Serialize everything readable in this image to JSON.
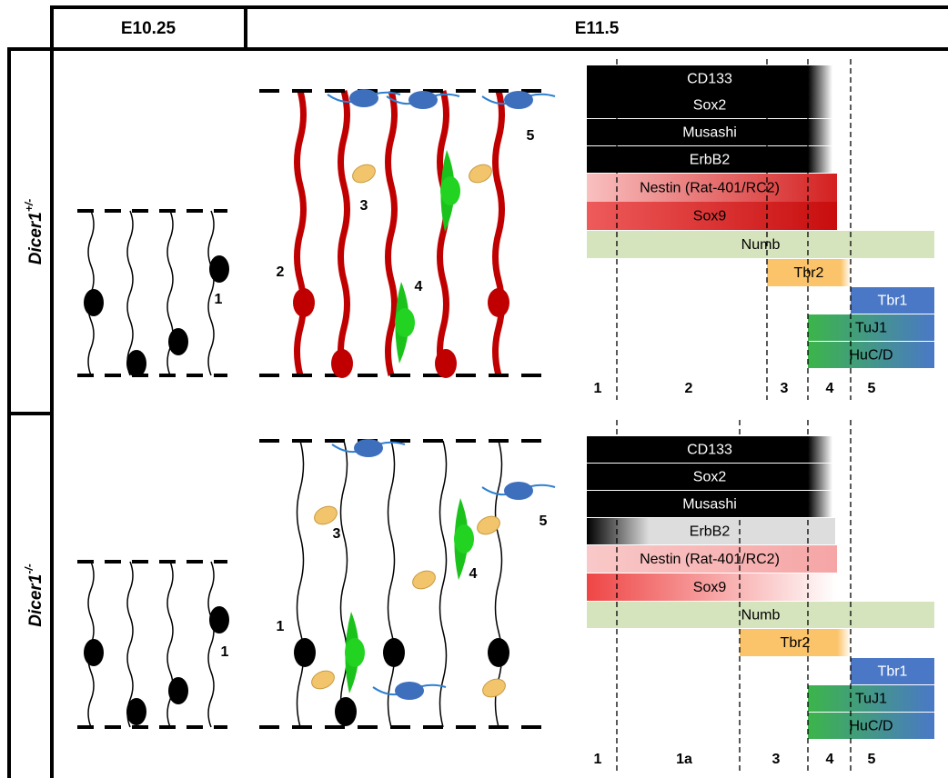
{
  "columns": [
    "E10.25",
    "E11.5"
  ],
  "rows": [
    {
      "label": "Dicer1",
      "label_superscript": "+/-",
      "cell_labels": [
        "1",
        "2",
        "3",
        "4",
        "5"
      ],
      "markers": [
        "CD133",
        "Sox2",
        "Musashi",
        "ErbB2",
        "Nestin (Rat-401/RC2)",
        "Sox9",
        "Numb",
        "Tbr2",
        "Tbr1",
        "TuJ1",
        "HuC/D"
      ],
      "zones": [
        "1",
        "2",
        "3",
        "4",
        "5"
      ]
    },
    {
      "label": "Dicer1",
      "label_superscript": "-/-",
      "cell_labels": [
        "1",
        "1",
        "3",
        "4",
        "5"
      ],
      "markers": [
        "CD133",
        "Sox2",
        "Musashi",
        "ErbB2",
        "Nestin (Rat-401/RC2)",
        "Sox9",
        "Numb",
        "Tbr2",
        "Tbr1",
        "TuJ1",
        "HuC/D"
      ],
      "zones": [
        "1",
        "1a",
        "3",
        "4",
        "5"
      ]
    }
  ]
}
